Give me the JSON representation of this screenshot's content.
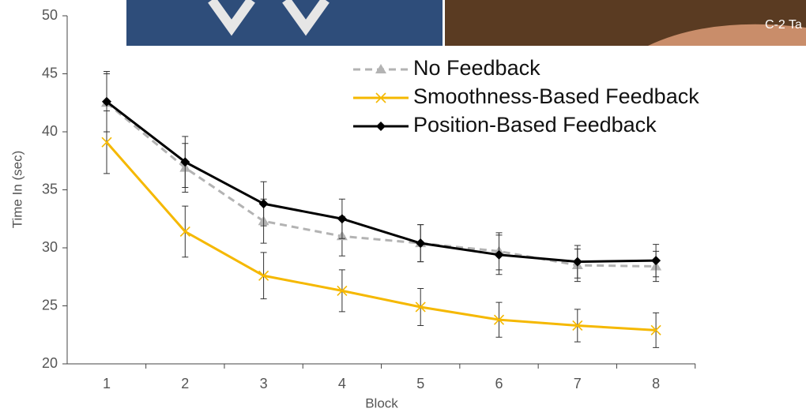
{
  "chart_data": {
    "type": "line",
    "categories": [
      "1",
      "2",
      "3",
      "4",
      "5",
      "6",
      "7",
      "8"
    ],
    "series": [
      {
        "name": "No Feedback",
        "color": "#b3b3b3",
        "marker": "triangle",
        "dash": true,
        "values": [
          42.5,
          36.9,
          32.3,
          31.0,
          30.4,
          29.7,
          28.5,
          28.4
        ],
        "errors": [
          2.5,
          2.1,
          1.9,
          1.7,
          1.6,
          1.6,
          1.4,
          1.3
        ]
      },
      {
        "name": "Smoothness-Based Feedback",
        "color": "#f5b800",
        "marker": "x",
        "dash": false,
        "values": [
          39.1,
          31.4,
          27.6,
          26.3,
          24.9,
          23.8,
          23.3,
          22.9
        ],
        "errors": [
          2.7,
          2.2,
          2.0,
          1.8,
          1.6,
          1.5,
          1.4,
          1.5
        ]
      },
      {
        "name": "Position-Based Feedback",
        "color": "#000000",
        "marker": "diamond",
        "dash": false,
        "values": [
          42.6,
          37.4,
          33.8,
          32.5,
          30.4,
          29.4,
          28.8,
          28.9
        ],
        "errors": [
          2.6,
          2.2,
          1.9,
          1.7,
          1.6,
          1.7,
          1.4,
          1.4
        ]
      }
    ],
    "ylim": [
      20,
      50
    ],
    "yticks": [
      20,
      25,
      30,
      35,
      40,
      45,
      50
    ],
    "y_label": "Time In (sec)",
    "x_label": "Block",
    "legend": "top-right"
  },
  "overlay": {
    "caption": "C-2 Ta"
  }
}
